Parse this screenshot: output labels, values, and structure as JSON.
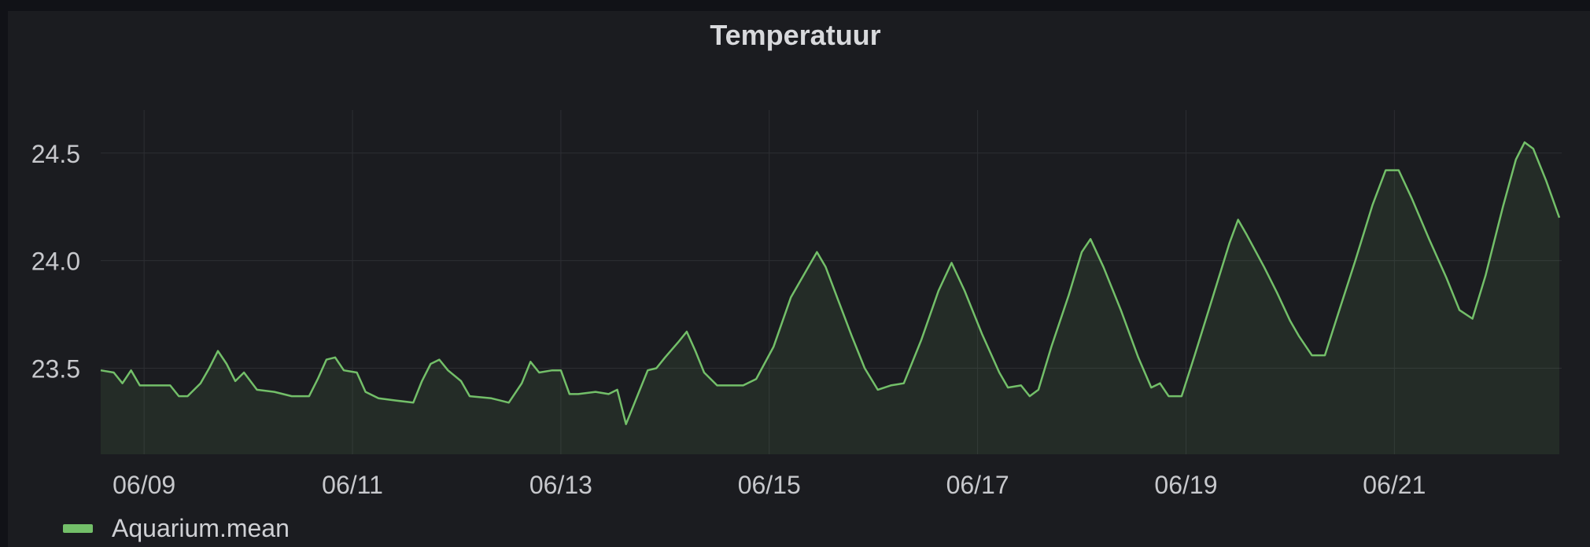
{
  "chart_data": {
    "type": "area",
    "title": "Temperatuur",
    "xlabel": "",
    "ylabel": "",
    "x_ticks": [
      "06/09",
      "06/11",
      "06/13",
      "06/15",
      "06/17",
      "06/19",
      "06/21"
    ],
    "y_ticks": [
      "23.5",
      "24.0",
      "24.5"
    ],
    "xlim": [
      "2021-06-08T14:00",
      "2021-06-22T14:00"
    ],
    "ylim": [
      23.1,
      24.7
    ],
    "grid": true,
    "legend_position": "bottom-left",
    "series": [
      {
        "name": "Aquarium.mean",
        "color": "#73bf69",
        "points": [
          [
            "2021-06-08T14:00",
            23.49
          ],
          [
            "2021-06-08T17:00",
            23.48
          ],
          [
            "2021-06-08T19:00",
            23.43
          ],
          [
            "2021-06-08T21:00",
            23.49
          ],
          [
            "2021-06-08T23:00",
            23.42
          ],
          [
            "2021-06-09T03:00",
            23.42
          ],
          [
            "2021-06-09T06:00",
            23.42
          ],
          [
            "2021-06-09T08:00",
            23.37
          ],
          [
            "2021-06-09T10:00",
            23.37
          ],
          [
            "2021-06-09T13:00",
            23.43
          ],
          [
            "2021-06-09T15:00",
            23.5
          ],
          [
            "2021-06-09T17:00",
            23.58
          ],
          [
            "2021-06-09T19:00",
            23.52
          ],
          [
            "2021-06-09T21:00",
            23.44
          ],
          [
            "2021-06-09T23:00",
            23.48
          ],
          [
            "2021-06-10T02:00",
            23.4
          ],
          [
            "2021-06-10T06:00",
            23.39
          ],
          [
            "2021-06-10T10:00",
            23.37
          ],
          [
            "2021-06-10T14:00",
            23.37
          ],
          [
            "2021-06-10T16:00",
            23.45
          ],
          [
            "2021-06-10T18:00",
            23.54
          ],
          [
            "2021-06-10T20:00",
            23.55
          ],
          [
            "2021-06-10T22:00",
            23.49
          ],
          [
            "2021-06-11T01:00",
            23.48
          ],
          [
            "2021-06-11T03:00",
            23.39
          ],
          [
            "2021-06-11T06:00",
            23.36
          ],
          [
            "2021-06-11T10:00",
            23.35
          ],
          [
            "2021-06-11T14:00",
            23.34
          ],
          [
            "2021-06-11T16:00",
            23.44
          ],
          [
            "2021-06-11T18:00",
            23.52
          ],
          [
            "2021-06-11T20:00",
            23.54
          ],
          [
            "2021-06-11T22:00",
            23.49
          ],
          [
            "2021-06-12T01:00",
            23.44
          ],
          [
            "2021-06-12T03:00",
            23.37
          ],
          [
            "2021-06-12T08:00",
            23.36
          ],
          [
            "2021-06-12T12:00",
            23.34
          ],
          [
            "2021-06-12T15:00",
            23.43
          ],
          [
            "2021-06-12T17:00",
            23.53
          ],
          [
            "2021-06-12T19:00",
            23.48
          ],
          [
            "2021-06-12T22:00",
            23.49
          ],
          [
            "2021-06-13T00:00",
            23.49
          ],
          [
            "2021-06-13T02:00",
            23.38
          ],
          [
            "2021-06-13T04:00",
            23.38
          ],
          [
            "2021-06-13T08:00",
            23.39
          ],
          [
            "2021-06-13T11:00",
            23.38
          ],
          [
            "2021-06-13T13:00",
            23.4
          ],
          [
            "2021-06-13T15:00",
            23.24
          ],
          [
            "2021-06-13T18:00",
            23.39
          ],
          [
            "2021-06-13T20:00",
            23.49
          ],
          [
            "2021-06-13T22:00",
            23.5
          ],
          [
            "2021-06-14T00:00",
            23.55
          ],
          [
            "2021-06-14T03:00",
            23.62
          ],
          [
            "2021-06-14T05:00",
            23.67
          ],
          [
            "2021-06-14T07:00",
            23.58
          ],
          [
            "2021-06-14T09:00",
            23.48
          ],
          [
            "2021-06-14T12:00",
            23.42
          ],
          [
            "2021-06-14T18:00",
            23.42
          ],
          [
            "2021-06-14T21:00",
            23.45
          ],
          [
            "2021-06-15T01:00",
            23.6
          ],
          [
            "2021-06-15T05:00",
            23.83
          ],
          [
            "2021-06-15T09:00",
            23.97
          ],
          [
            "2021-06-15T11:00",
            24.04
          ],
          [
            "2021-06-15T13:00",
            23.97
          ],
          [
            "2021-06-15T16:00",
            23.81
          ],
          [
            "2021-06-15T19:00",
            23.65
          ],
          [
            "2021-06-15T22:00",
            23.5
          ],
          [
            "2021-06-16T01:00",
            23.4
          ],
          [
            "2021-06-16T04:00",
            23.42
          ],
          [
            "2021-06-16T07:00",
            23.43
          ],
          [
            "2021-06-16T11:00",
            23.63
          ],
          [
            "2021-06-16T15:00",
            23.86
          ],
          [
            "2021-06-16T18:00",
            23.99
          ],
          [
            "2021-06-16T21:00",
            23.86
          ],
          [
            "2021-06-17T01:00",
            23.66
          ],
          [
            "2021-06-17T05:00",
            23.48
          ],
          [
            "2021-06-17T07:00",
            23.41
          ],
          [
            "2021-06-17T10:00",
            23.42
          ],
          [
            "2021-06-17T12:00",
            23.37
          ],
          [
            "2021-06-17T14:00",
            23.4
          ],
          [
            "2021-06-17T17:00",
            23.6
          ],
          [
            "2021-06-17T21:00",
            23.84
          ],
          [
            "2021-06-18T00:00",
            24.04
          ],
          [
            "2021-06-18T02:00",
            24.1
          ],
          [
            "2021-06-18T05:00",
            23.97
          ],
          [
            "2021-06-18T09:00",
            23.77
          ],
          [
            "2021-06-18T13:00",
            23.55
          ],
          [
            "2021-06-18T16:00",
            23.41
          ],
          [
            "2021-06-18T18:00",
            23.43
          ],
          [
            "2021-06-18T20:00",
            23.37
          ],
          [
            "2021-06-18T23:00",
            23.37
          ],
          [
            "2021-06-19T02:00",
            23.56
          ],
          [
            "2021-06-19T06:00",
            23.82
          ],
          [
            "2021-06-19T10:00",
            24.08
          ],
          [
            "2021-06-19T12:00",
            24.19
          ],
          [
            "2021-06-19T14:00",
            24.12
          ],
          [
            "2021-06-19T18:00",
            23.97
          ],
          [
            "2021-06-19T21:00",
            23.85
          ],
          [
            "2021-06-20T00:00",
            23.72
          ],
          [
            "2021-06-20T02:00",
            23.65
          ],
          [
            "2021-06-20T05:00",
            23.56
          ],
          [
            "2021-06-20T08:00",
            23.56
          ],
          [
            "2021-06-20T11:00",
            23.75
          ],
          [
            "2021-06-20T15:00",
            24.0
          ],
          [
            "2021-06-20T19:00",
            24.26
          ],
          [
            "2021-06-20T22:00",
            24.42
          ],
          [
            "2021-06-21T01:00",
            24.42
          ],
          [
            "2021-06-21T04:00",
            24.29
          ],
          [
            "2021-06-21T08:00",
            24.1
          ],
          [
            "2021-06-21T12:00",
            23.92
          ],
          [
            "2021-06-21T15:00",
            23.77
          ],
          [
            "2021-06-21T18:00",
            23.73
          ],
          [
            "2021-06-21T21:00",
            23.93
          ],
          [
            "2021-06-22T01:00",
            24.25
          ],
          [
            "2021-06-22T04:00",
            24.47
          ],
          [
            "2021-06-22T06:00",
            24.55
          ],
          [
            "2021-06-22T08:00",
            24.52
          ],
          [
            "2021-06-22T11:00",
            24.37
          ],
          [
            "2021-06-22T14:00",
            24.2
          ]
        ]
      }
    ]
  }
}
